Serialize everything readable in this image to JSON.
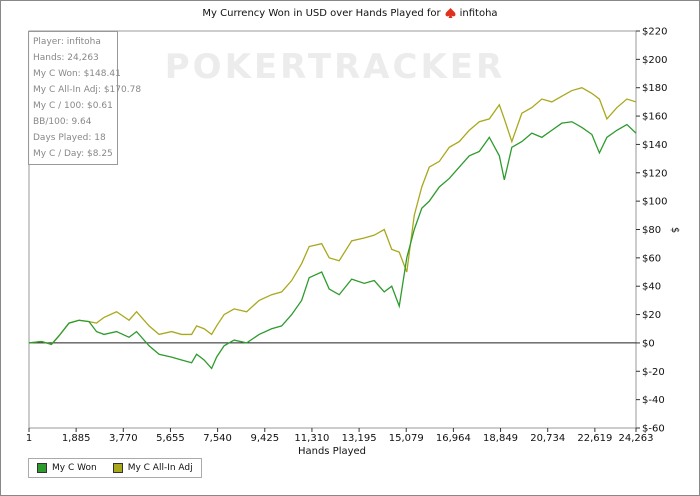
{
  "chart_data": {
    "type": "line",
    "title": "My Currency Won in USD over Hands Played for",
    "player": "infitoha",
    "watermark": "POKERTRACKER",
    "x_label": "Hands Played",
    "y_label": "$",
    "stats": [
      "Player: infitoha",
      "Hands: 24,263",
      "My C Won: $148.41",
      "My C All-In Adj: $170.78",
      "My C / 100: $0.61",
      "BB/100: 9.64",
      "Days Played: 18",
      "My C / Day: $8.25"
    ],
    "x": [
      1,
      500,
      900,
      1200,
      1600,
      2000,
      2400,
      2700,
      3000,
      3500,
      4000,
      4300,
      4800,
      5200,
      5700,
      6100,
      6500,
      6700,
      7000,
      7300,
      7500,
      7800,
      8200,
      8700,
      9200,
      9700,
      10100,
      10500,
      10900,
      11200,
      11700,
      12000,
      12400,
      12900,
      13400,
      13800,
      14200,
      14500,
      14800,
      15100,
      15400,
      15700,
      16000,
      16400,
      16800,
      17200,
      17600,
      18000,
      18400,
      18800,
      19000,
      19300,
      19700,
      20100,
      20500,
      20900,
      21300,
      21700,
      22100,
      22500,
      22800,
      23100,
      23500,
      23900,
      24263
    ],
    "series": [
      {
        "name": "My C Won",
        "color": "#2e9b2e",
        "values": [
          0,
          1,
          -1,
          5,
          14,
          16,
          15,
          8,
          6,
          8,
          4,
          8,
          -2,
          -8,
          -10,
          -12,
          -14,
          -8,
          -12,
          -18,
          -10,
          -2,
          2,
          0,
          6,
          10,
          12,
          20,
          30,
          46,
          50,
          38,
          34,
          45,
          42,
          44,
          36,
          40,
          26,
          60,
          80,
          95,
          100,
          110,
          116,
          124,
          132,
          135,
          145,
          132,
          115,
          138,
          142,
          148,
          145,
          150,
          155,
          156,
          152,
          147,
          134,
          145,
          150,
          154,
          148
        ]
      },
      {
        "name": "My C All-In Adj",
        "color": "#a9a81c",
        "values": [
          0,
          1,
          -1,
          5,
          14,
          16,
          15,
          14,
          18,
          22,
          16,
          22,
          12,
          6,
          8,
          6,
          6,
          12,
          10,
          6,
          12,
          20,
          24,
          22,
          30,
          34,
          36,
          44,
          56,
          68,
          70,
          60,
          58,
          72,
          74,
          76,
          80,
          66,
          64,
          50,
          90,
          110,
          124,
          128,
          138,
          142,
          150,
          156,
          158,
          168,
          158,
          142,
          162,
          166,
          172,
          170,
          174,
          178,
          180,
          176,
          172,
          158,
          166,
          172,
          170
        ]
      }
    ],
    "xlim": [
      1,
      24263
    ],
    "xticks": [
      1,
      {
        "value": 1885,
        "label": "1,885"
      },
      {
        "value": 3770,
        "label": "3,770"
      },
      {
        "value": 5655,
        "label": "5,655"
      },
      {
        "value": 7540,
        "label": "7,540"
      },
      {
        "value": 9425,
        "label": "9,425"
      },
      {
        "value": 11310,
        "label": "11,310"
      },
      {
        "value": 13195,
        "label": "13,195"
      },
      {
        "value": 15079,
        "label": "15,079"
      },
      {
        "value": 16964,
        "label": "16,964"
      },
      {
        "value": 18849,
        "label": "18,849"
      },
      {
        "value": 20734,
        "label": "20,734"
      },
      {
        "value": 22619,
        "label": "22,619"
      },
      {
        "value": 24263,
        "label": "24,263"
      }
    ],
    "ylim": [
      -60,
      220
    ],
    "yticks": [
      {
        "value": -60,
        "label": "$-60"
      },
      {
        "value": -40,
        "label": "$-40"
      },
      {
        "value": -20,
        "label": "$-20"
      },
      {
        "value": 0,
        "label": "$0"
      },
      {
        "value": 20,
        "label": "$20"
      },
      {
        "value": 40,
        "label": "$40"
      },
      {
        "value": 60,
        "label": "$60"
      },
      {
        "value": 80,
        "label": "$80"
      },
      {
        "value": 100,
        "label": "$100"
      },
      {
        "value": 120,
        "label": "$120"
      },
      {
        "value": 140,
        "label": "$140"
      },
      {
        "value": 160,
        "label": "$160"
      },
      {
        "value": 180,
        "label": "$180"
      },
      {
        "value": 200,
        "label": "$200"
      },
      {
        "value": 220,
        "label": "$220"
      }
    ],
    "y_axis_side": "right",
    "legend": "bottom-left"
  }
}
